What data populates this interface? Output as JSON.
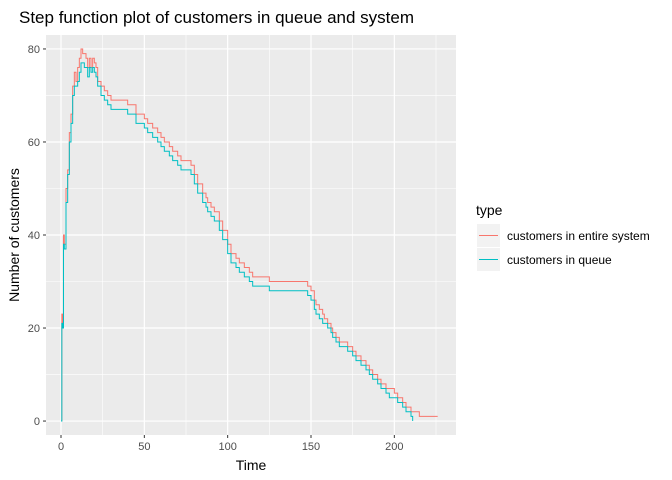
{
  "chart_data": {
    "type": "line",
    "step": true,
    "title": "Step function plot of customers in queue and system",
    "xlabel": "Time",
    "ylabel": "Number of customers",
    "xlim": [
      -9,
      237
    ],
    "ylim": [
      -3,
      83
    ],
    "xticks": [
      0,
      50,
      100,
      150,
      200
    ],
    "yticks": [
      0,
      20,
      40,
      60,
      80
    ],
    "grid": true,
    "panel_background": "#EBEBEB",
    "legend": {
      "title": "type",
      "placement": "right"
    },
    "series": [
      {
        "name": "customers in entire system",
        "color": "#F8766D",
        "x": [
          0,
          0.5,
          1,
          1.5,
          2,
          3,
          4,
          5,
          6,
          7,
          8,
          9,
          10,
          11,
          12,
          13,
          14,
          15,
          16,
          17,
          18,
          19,
          20,
          21,
          22,
          24,
          26,
          28,
          30,
          32,
          35,
          40,
          45,
          50,
          52,
          55,
          58,
          60,
          62,
          65,
          67,
          70,
          72,
          75,
          78,
          80,
          82,
          85,
          87,
          88,
          90,
          92,
          95,
          97,
          100,
          102,
          105,
          107,
          110,
          113,
          115,
          118,
          120,
          125,
          130,
          140,
          148,
          150,
          152,
          153,
          155,
          157,
          158,
          160,
          162,
          163,
          165,
          167,
          170,
          172,
          175,
          177,
          180,
          183,
          185,
          187,
          190,
          192,
          195,
          197,
          200,
          202,
          205,
          207,
          210,
          212,
          215,
          220,
          226
        ],
        "y": [
          0,
          23,
          20,
          40,
          38,
          50,
          54,
          62,
          66,
          72,
          75,
          73,
          76,
          78,
          80,
          79,
          79,
          78,
          76,
          78,
          76,
          78,
          77,
          76,
          73,
          72,
          71,
          70,
          69,
          69,
          69,
          68,
          66,
          65,
          64,
          63,
          62,
          61,
          60,
          59,
          58,
          57,
          56,
          56,
          55,
          53,
          51,
          49,
          48,
          47,
          46,
          45,
          43,
          41,
          38,
          36,
          35,
          34,
          33,
          32,
          31,
          31,
          31,
          30,
          30,
          30,
          29,
          28,
          26,
          25,
          24,
          23,
          22,
          21,
          20,
          19,
          18,
          17,
          17,
          16,
          15,
          14,
          13,
          12,
          11,
          10,
          9,
          8,
          7,
          7,
          6,
          5,
          4,
          3,
          2,
          2,
          1,
          1,
          1
        ]
      },
      {
        "name": "customers in queue",
        "color": "#00BFC4",
        "x": [
          0,
          0.5,
          1,
          1.5,
          2,
          3,
          4,
          5,
          6,
          7,
          8,
          9,
          10,
          11,
          12,
          13,
          14,
          15,
          16,
          17,
          18,
          19,
          20,
          21,
          22,
          24,
          26,
          28,
          30,
          32,
          35,
          40,
          45,
          50,
          52,
          55,
          58,
          60,
          62,
          65,
          67,
          70,
          72,
          75,
          78,
          80,
          82,
          85,
          87,
          88,
          90,
          92,
          95,
          97,
          100,
          102,
          105,
          107,
          110,
          113,
          115,
          118,
          120,
          125,
          130,
          140,
          148,
          150,
          152,
          153,
          155,
          157,
          158,
          160,
          162,
          163,
          165,
          167,
          170,
          172,
          175,
          177,
          180,
          183,
          185,
          187,
          190,
          192,
          195,
          197,
          200,
          202,
          205,
          207,
          210,
          211
        ],
        "y": [
          0,
          21,
          20,
          38,
          37,
          47,
          53,
          60,
          64,
          70,
          72,
          72,
          73,
          75,
          77,
          77,
          76,
          76,
          74,
          76,
          75,
          76,
          75,
          74,
          72,
          70,
          69,
          68,
          67,
          67,
          67,
          66,
          64,
          63,
          62,
          61,
          60,
          59,
          58,
          57,
          56,
          55,
          54,
          54,
          53,
          51,
          49,
          47,
          46,
          45,
          44,
          43,
          41,
          39,
          36,
          34,
          33,
          32,
          31,
          30,
          29,
          29,
          29,
          28,
          28,
          28,
          27,
          26,
          24,
          23,
          22,
          21,
          21,
          20,
          19,
          18,
          17,
          16,
          16,
          15,
          14,
          13,
          12,
          11,
          10,
          9,
          8,
          7,
          6,
          5,
          5,
          4,
          3,
          2,
          1,
          0
        ]
      }
    ]
  }
}
